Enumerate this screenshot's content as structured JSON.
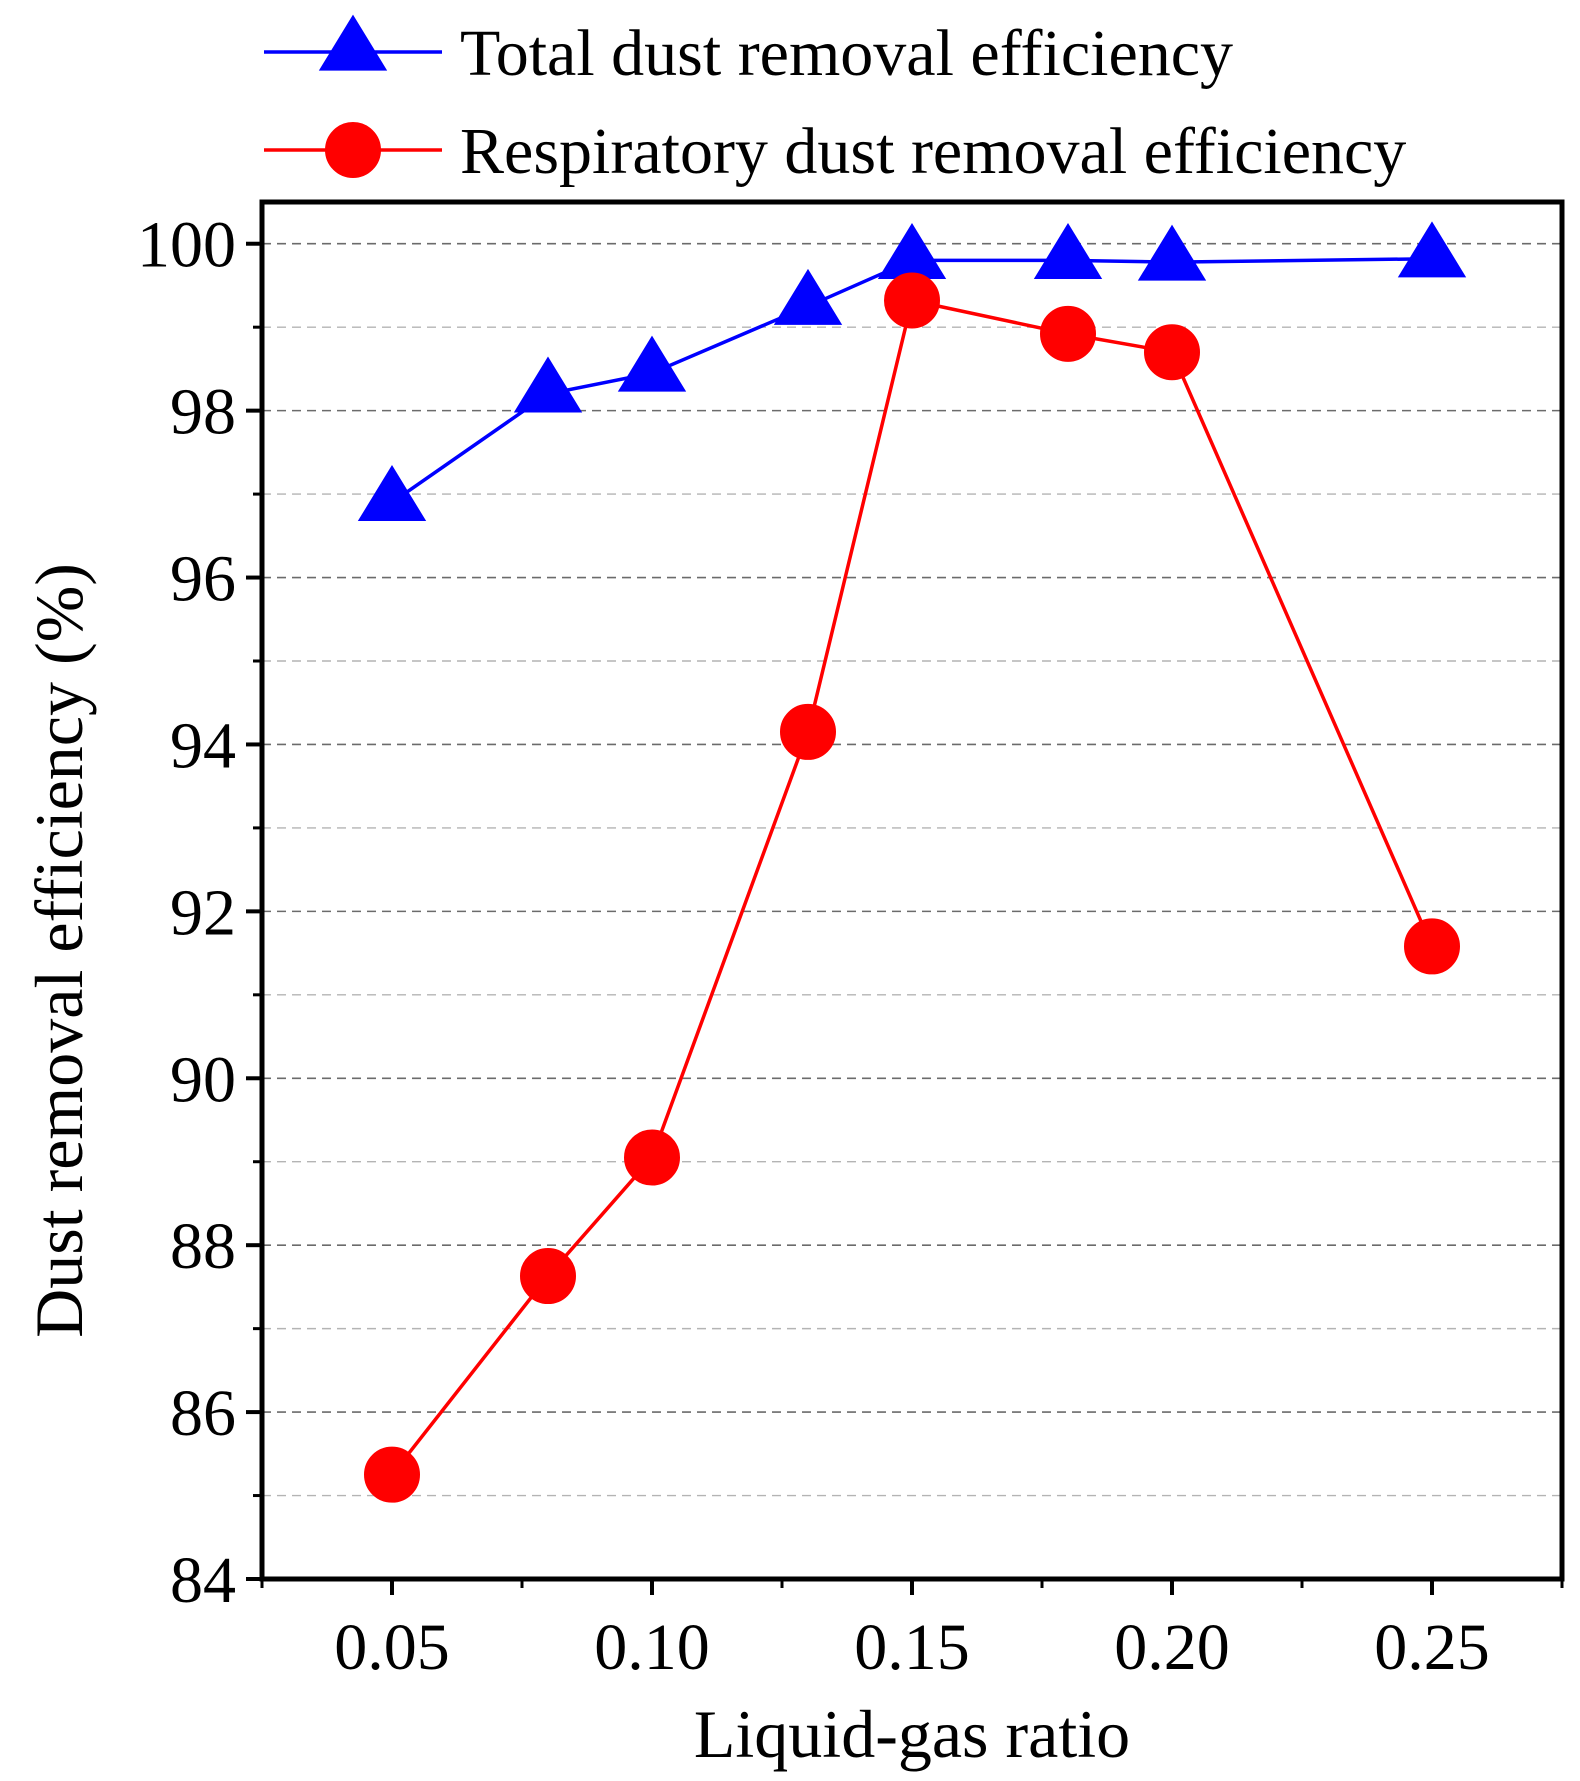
{
  "chart_data": {
    "type": "line",
    "title": "",
    "xlabel": "Liquid-gas ratio",
    "ylabel": "Dust removal efficiency (%)",
    "xlim": [
      0.025,
      0.275
    ],
    "ylim": [
      84,
      100.5
    ],
    "x_ticks": [
      0.05,
      0.1,
      0.15,
      0.2,
      0.25
    ],
    "x_tick_labels": [
      "0.05",
      "0.10",
      "0.15",
      "0.20",
      "0.25"
    ],
    "y_ticks": [
      84,
      86,
      88,
      90,
      92,
      94,
      96,
      98,
      100
    ],
    "y_tick_labels": [
      "84",
      "86",
      "88",
      "90",
      "92",
      "94",
      "96",
      "98",
      "100"
    ],
    "y_minor_ticks": [
      85,
      87,
      89,
      91,
      93,
      95,
      97,
      99
    ],
    "x_minor_ticks": [
      0.075,
      0.125,
      0.175,
      0.225
    ],
    "grid": true,
    "legend_position": "top",
    "series": [
      {
        "name": "Total dust removal efficiency",
        "color": "#0000FF",
        "marker": "triangle",
        "x": [
          0.05,
          0.08,
          0.1,
          0.13,
          0.15,
          0.18,
          0.2,
          0.25
        ],
        "values": [
          96.9,
          98.2,
          98.45,
          99.25,
          99.8,
          99.8,
          99.78,
          99.82
        ]
      },
      {
        "name": "Respiratory dust removal efficiency",
        "color": "#FF0000",
        "marker": "circle",
        "x": [
          0.05,
          0.08,
          0.1,
          0.13,
          0.15,
          0.18,
          0.2,
          0.25
        ],
        "values": [
          85.25,
          87.63,
          89.05,
          94.15,
          99.32,
          98.92,
          98.7,
          91.58
        ]
      }
    ]
  }
}
